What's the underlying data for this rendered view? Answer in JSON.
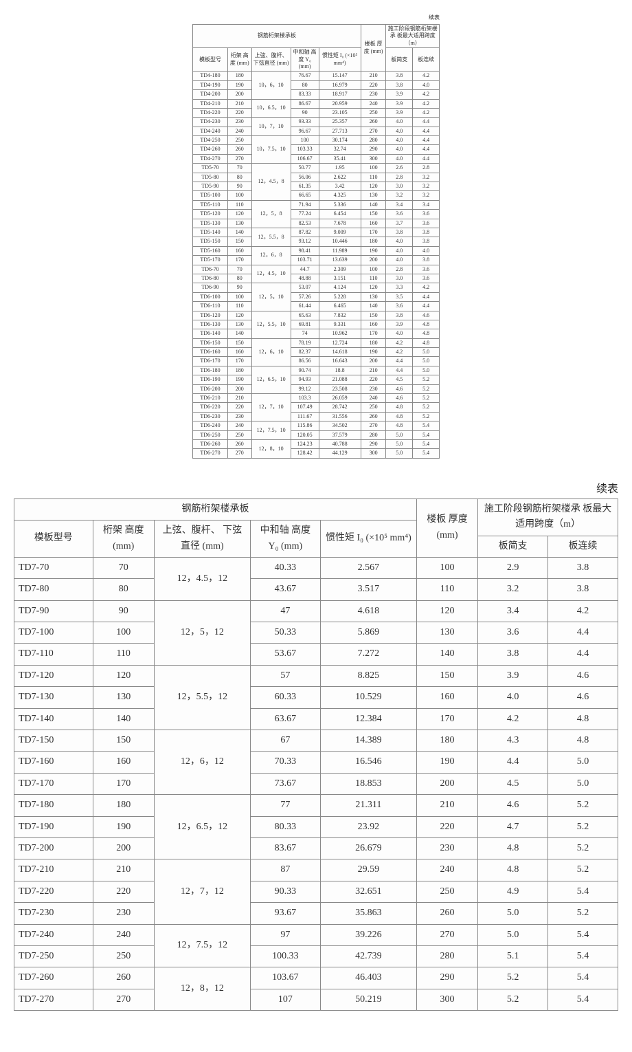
{
  "labels": {
    "continued": "续表",
    "section_title": "钢筋桁架楼承板",
    "col_model": "模板型号",
    "col_truss_h": "桁架\n高度\n(mm)",
    "col_chord": "上弦、腹杆、\n下弦直径\n(mm)",
    "col_y0": "中和轴\n高度 Y₀\n(mm)",
    "col_i0": "惯性矩 I₀\n(×10⁵ mm⁴)",
    "col_slab": "楼板\n厚度\n(mm)",
    "col_span_group": "施工阶段钢筋桁架楼承\n板最大适用跨度（m）",
    "col_span_simple": "板简支",
    "col_span_cont": "板连续"
  },
  "small_groups": [
    {
      "spec": "10，6，10",
      "rows": [
        [
          "TD4-180",
          "180",
          "76.67",
          "15.147",
          "210",
          "3.8",
          "4.2"
        ],
        [
          "TD4-190",
          "190",
          "80",
          "16.979",
          "220",
          "3.8",
          "4.0"
        ],
        [
          "TD4-200",
          "200",
          "83.33",
          "18.917",
          "230",
          "3.9",
          "4.2"
        ]
      ]
    },
    {
      "spec": "10，6.5，10",
      "rows": [
        [
          "TD4-210",
          "210",
          "86.67",
          "20.959",
          "240",
          "3.9",
          "4.2"
        ],
        [
          "TD4-220",
          "220",
          "90",
          "23.105",
          "250",
          "3.9",
          "4.2"
        ]
      ]
    },
    {
      "spec": "10，7，10",
      "rows": [
        [
          "TD4-230",
          "230",
          "93.33",
          "25.357",
          "260",
          "4.0",
          "4.4"
        ],
        [
          "TD4-240",
          "240",
          "96.67",
          "27.713",
          "270",
          "4.0",
          "4.4"
        ]
      ]
    },
    {
      "spec": "10，7.5，10",
      "rows": [
        [
          "TD4-250",
          "250",
          "100",
          "30.174",
          "280",
          "4.0",
          "4.4"
        ],
        [
          "TD4-260",
          "260",
          "103.33",
          "32.74",
          "290",
          "4.0",
          "4.4"
        ],
        [
          "TD4-270",
          "270",
          "106.67",
          "35.41",
          "300",
          "4.0",
          "4.4"
        ]
      ]
    },
    {
      "spec": "12，4.5，8",
      "rows": [
        [
          "TD5-70",
          "70",
          "50.77",
          "1.95",
          "100",
          "2.6",
          "2.8"
        ],
        [
          "TD5-80",
          "80",
          "56.06",
          "2.622",
          "110",
          "2.8",
          "3.2"
        ],
        [
          "TD5-90",
          "90",
          "61.35",
          "3.42",
          "120",
          "3.0",
          "3.2"
        ],
        [
          "TD5-100",
          "100",
          "66.65",
          "4.325",
          "130",
          "3.2",
          "3.2"
        ]
      ]
    },
    {
      "spec": "12，5，8",
      "rows": [
        [
          "TD5-110",
          "110",
          "71.94",
          "5.336",
          "140",
          "3.4",
          "3.4"
        ],
        [
          "TD5-120",
          "120",
          "77.24",
          "6.454",
          "150",
          "3.6",
          "3.6"
        ],
        [
          "TD5-130",
          "130",
          "82.53",
          "7.678",
          "160",
          "3.7",
          "3.6"
        ]
      ]
    },
    {
      "spec": "12，5.5，8",
      "rows": [
        [
          "TD5-140",
          "140",
          "87.82",
          "9.009",
          "170",
          "3.8",
          "3.8"
        ],
        [
          "TD5-150",
          "150",
          "93.12",
          "10.446",
          "180",
          "4.0",
          "3.8"
        ]
      ]
    },
    {
      "spec": "12，6，8",
      "rows": [
        [
          "TD5-160",
          "160",
          "98.41",
          "11.989",
          "190",
          "4.0",
          "4.0"
        ],
        [
          "TD5-170",
          "170",
          "103.71",
          "13.639",
          "200",
          "4.0",
          "3.8"
        ]
      ]
    },
    {
      "spec": "12，4.5，10",
      "rows": [
        [
          "TD6-70",
          "70",
          "44.7",
          "2.309",
          "100",
          "2.8",
          "3.6"
        ],
        [
          "TD6-80",
          "80",
          "48.88",
          "3.151",
          "110",
          "3.0",
          "3.6"
        ]
      ]
    },
    {
      "spec": "12，5，10",
      "rows": [
        [
          "TD6-90",
          "90",
          "53.07",
          "4.124",
          "120",
          "3.3",
          "4.2"
        ],
        [
          "TD6-100",
          "100",
          "57.26",
          "5.228",
          "130",
          "3.5",
          "4.4"
        ],
        [
          "TD6-110",
          "110",
          "61.44",
          "6.465",
          "140",
          "3.6",
          "4.4"
        ]
      ]
    },
    {
      "spec": "12，5.5，10",
      "rows": [
        [
          "TD6-120",
          "120",
          "65.63",
          "7.832",
          "150",
          "3.8",
          "4.6"
        ],
        [
          "TD6-130",
          "130",
          "69.81",
          "9.331",
          "160",
          "3.9",
          "4.8"
        ],
        [
          "TD6-140",
          "140",
          "74",
          "10.962",
          "170",
          "4.0",
          "4.8"
        ]
      ]
    },
    {
      "spec": "12，6，10",
      "rows": [
        [
          "TD6-150",
          "150",
          "78.19",
          "12.724",
          "180",
          "4.2",
          "4.8"
        ],
        [
          "TD6-160",
          "160",
          "82.37",
          "14.618",
          "190",
          "4.2",
          "5.0"
        ],
        [
          "TD6-170",
          "170",
          "86.56",
          "16.643",
          "200",
          "4.4",
          "5.0"
        ]
      ]
    },
    {
      "spec": "12，6.5，10",
      "rows": [
        [
          "TD6-180",
          "180",
          "90.74",
          "18.8",
          "210",
          "4.4",
          "5.0"
        ],
        [
          "TD6-190",
          "190",
          "94.93",
          "21.088",
          "220",
          "4.5",
          "5.2"
        ],
        [
          "TD6-200",
          "200",
          "99.12",
          "23.508",
          "230",
          "4.6",
          "5.2"
        ]
      ]
    },
    {
      "spec": "12，7，10",
      "rows": [
        [
          "TD6-210",
          "210",
          "103.3",
          "26.059",
          "240",
          "4.6",
          "5.2"
        ],
        [
          "TD6-220",
          "220",
          "107.49",
          "28.742",
          "250",
          "4.8",
          "5.2"
        ],
        [
          "TD6-230",
          "230",
          "111.67",
          "31.556",
          "260",
          "4.8",
          "5.2"
        ]
      ]
    },
    {
      "spec": "12，7.5，10",
      "rows": [
        [
          "TD6-240",
          "240",
          "115.86",
          "34.502",
          "270",
          "4.8",
          "5.4"
        ],
        [
          "TD6-250",
          "250",
          "120.05",
          "37.579",
          "280",
          "5.0",
          "5.4"
        ]
      ]
    },
    {
      "spec": "12，8，10",
      "rows": [
        [
          "TD6-260",
          "260",
          "124.23",
          "40.788",
          "290",
          "5.0",
          "5.4"
        ],
        [
          "TD6-270",
          "270",
          "128.42",
          "44.129",
          "300",
          "5.0",
          "5.4"
        ]
      ]
    }
  ],
  "big_groups": [
    {
      "spec": "12，4.5，12",
      "rows": [
        [
          "TD7-70",
          "70",
          "40.33",
          "2.567",
          "100",
          "2.9",
          "3.8"
        ],
        [
          "TD7-80",
          "80",
          "43.67",
          "3.517",
          "110",
          "3.2",
          "3.8"
        ]
      ]
    },
    {
      "spec": "12，5，12",
      "rows": [
        [
          "TD7-90",
          "90",
          "47",
          "4.618",
          "120",
          "3.4",
          "4.2"
        ],
        [
          "TD7-100",
          "100",
          "50.33",
          "5.869",
          "130",
          "3.6",
          "4.4"
        ],
        [
          "TD7-110",
          "110",
          "53.67",
          "7.272",
          "140",
          "3.8",
          "4.4"
        ]
      ]
    },
    {
      "spec": "12，5.5，12",
      "rows": [
        [
          "TD7-120",
          "120",
          "57",
          "8.825",
          "150",
          "3.9",
          "4.6"
        ],
        [
          "TD7-130",
          "130",
          "60.33",
          "10.529",
          "160",
          "4.0",
          "4.6"
        ],
        [
          "TD7-140",
          "140",
          "63.67",
          "12.384",
          "170",
          "4.2",
          "4.8"
        ]
      ]
    },
    {
      "spec": "12，6，12",
      "rows": [
        [
          "TD7-150",
          "150",
          "67",
          "14.389",
          "180",
          "4.3",
          "4.8"
        ],
        [
          "TD7-160",
          "160",
          "70.33",
          "16.546",
          "190",
          "4.4",
          "5.0"
        ],
        [
          "TD7-170",
          "170",
          "73.67",
          "18.853",
          "200",
          "4.5",
          "5.0"
        ]
      ]
    },
    {
      "spec": "12，6.5，12",
      "rows": [
        [
          "TD7-180",
          "180",
          "77",
          "21.311",
          "210",
          "4.6",
          "5.2"
        ],
        [
          "TD7-190",
          "190",
          "80.33",
          "23.92",
          "220",
          "4.7",
          "5.2"
        ],
        [
          "TD7-200",
          "200",
          "83.67",
          "26.679",
          "230",
          "4.8",
          "5.2"
        ]
      ]
    },
    {
      "spec": "12，7，12",
      "rows": [
        [
          "TD7-210",
          "210",
          "87",
          "29.59",
          "240",
          "4.8",
          "5.2"
        ],
        [
          "TD7-220",
          "220",
          "90.33",
          "32.651",
          "250",
          "4.9",
          "5.4"
        ],
        [
          "TD7-230",
          "230",
          "93.67",
          "35.863",
          "260",
          "5.0",
          "5.2"
        ]
      ]
    },
    {
      "spec": "12，7.5，12",
      "rows": [
        [
          "TD7-240",
          "240",
          "97",
          "39.226",
          "270",
          "5.0",
          "5.4"
        ],
        [
          "TD7-250",
          "250",
          "100.33",
          "42.739",
          "280",
          "5.1",
          "5.4"
        ]
      ]
    },
    {
      "spec": "12，8，12",
      "rows": [
        [
          "TD7-260",
          "260",
          "103.67",
          "46.403",
          "290",
          "5.2",
          "5.4"
        ],
        [
          "TD7-270",
          "270",
          "107",
          "50.219",
          "300",
          "5.2",
          "5.4"
        ]
      ]
    }
  ]
}
